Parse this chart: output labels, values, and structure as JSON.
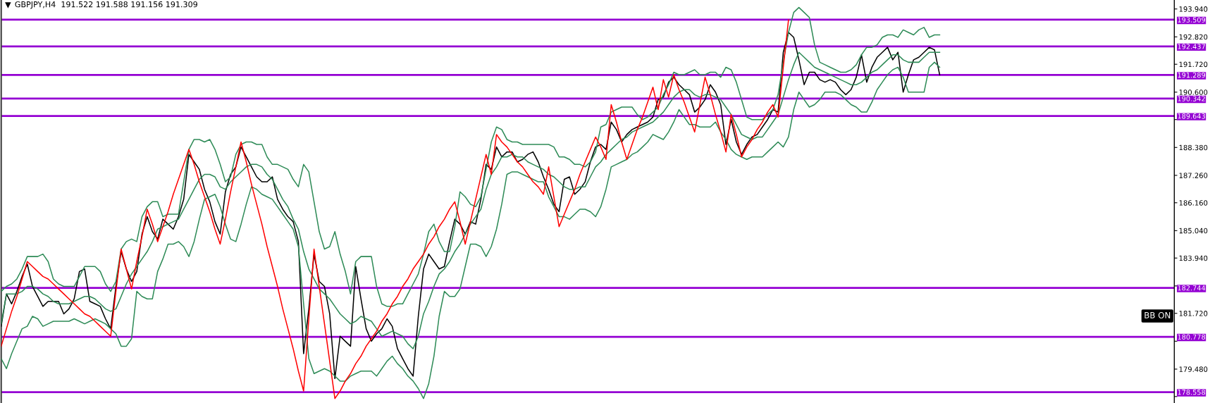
{
  "chart_data": {
    "type": "line",
    "title": "GBPJPY,H4  191.522 191.588 191.156 191.309",
    "annotations": [
      "BB ON"
    ],
    "categories": [
      null,
      null,
      null,
      null,
      null,
      null,
      null,
      null,
      null,
      null,
      null,
      null,
      null,
      null,
      null,
      null,
      null,
      null,
      null,
      null,
      null,
      null,
      null,
      null,
      null,
      null,
      null,
      null,
      null,
      null,
      null,
      null,
      null,
      null,
      null,
      null,
      null,
      null,
      null,
      null,
      null,
      null,
      null,
      null,
      null,
      null,
      null,
      null,
      null,
      null,
      null,
      null,
      null,
      null,
      null,
      null,
      null,
      null,
      null,
      null,
      null,
      null,
      null,
      null,
      null,
      null,
      null,
      null,
      null,
      null,
      null,
      null,
      null,
      null,
      null,
      null,
      null,
      null,
      null,
      null,
      null,
      null,
      null,
      null,
      null,
      null,
      null,
      null,
      null,
      null,
      null,
      null,
      null,
      null,
      null,
      null,
      null,
      null,
      null,
      null,
      null,
      null,
      null,
      null,
      null,
      null,
      null,
      null,
      null,
      null,
      null,
      null,
      null,
      null,
      null,
      null,
      null,
      null,
      null,
      null,
      null,
      null,
      null,
      null,
      null,
      null,
      null,
      null,
      null,
      null,
      null,
      null,
      null,
      null,
      null,
      null,
      null,
      null,
      null,
      null,
      null,
      null,
      null,
      null,
      null,
      null,
      null,
      null,
      null,
      null,
      null,
      null,
      null,
      null,
      null,
      null,
      null,
      null,
      null,
      null,
      null,
      null,
      null,
      null,
      null,
      null,
      null,
      null,
      null,
      null,
      null,
      null,
      null,
      null,
      null,
      null,
      null,
      null,
      null,
      null,
      null,
      null,
      null,
      null,
      null,
      null,
      null,
      null,
      null,
      null,
      null,
      null,
      null,
      null,
      null,
      null,
      null,
      null,
      null,
      null,
      null,
      null,
      null,
      null,
      null,
      null,
      null,
      null,
      null,
      null,
      null,
      null,
      null,
      null,
      null,
      null,
      null,
      null,
      null,
      null,
      null,
      null,
      null,
      null,
      null
    ],
    "ylim": [
      178.12,
      194.3
    ],
    "yticks": [
      {
        "value": 193.94,
        "label": "193.940"
      },
      {
        "value": 192.82,
        "label": "192.820"
      },
      {
        "value": 191.72,
        "label": "191.720"
      },
      {
        "value": 190.6,
        "label": "190.600"
      },
      {
        "value": 189.5,
        "label": null
      },
      {
        "value": 188.38,
        "label": "188.380"
      },
      {
        "value": 187.26,
        "label": "187.260"
      },
      {
        "value": 186.16,
        "label": "186.160"
      },
      {
        "value": 185.04,
        "label": "185.040"
      },
      {
        "value": 183.94,
        "label": "183.940"
      },
      {
        "value": 182.82,
        "label": null
      },
      {
        "value": 181.72,
        "label": "181.720"
      },
      {
        "value": 180.6,
        "label": null
      },
      {
        "value": 179.48,
        "label": "179.480"
      },
      {
        "value": 178.38,
        "label": null
      }
    ],
    "tick_labels": "y",
    "grid": false,
    "marker": "none",
    "series": [
      {
        "color": "#000000",
        "values": [
          181.2,
          182.5,
          182.1,
          182.6,
          183.2,
          183.7,
          182.8,
          182.4,
          182.0,
          182.2,
          182.2,
          182.2,
          181.7,
          181.9,
          182.3,
          183.4,
          183.5,
          182.2,
          182.1,
          182.0,
          181.5,
          181.1,
          182.8,
          184.2,
          183.5,
          183.0,
          183.4,
          184.9,
          185.6,
          185.0,
          184.7,
          185.5,
          185.3,
          185.1,
          185.6,
          186.3,
          188.1,
          187.8,
          187.5,
          186.7,
          186.2,
          185.4,
          184.9,
          186.6,
          187.3,
          187.6,
          188.4,
          188.0,
          187.6,
          187.2,
          187.0,
          187.0,
          187.2,
          186.3,
          185.9,
          185.6,
          185.4,
          184.6,
          180.1,
          181.9,
          184.1,
          183.0,
          182.8,
          181.7,
          179.1,
          180.8,
          180.6,
          180.4,
          183.6,
          182.3,
          181.1,
          180.6,
          180.9,
          181.1,
          181.5,
          181.2,
          180.3,
          179.9,
          179.5,
          179.2,
          181.6,
          183.5,
          184.1,
          183.8,
          183.5,
          183.6,
          184.6,
          185.5,
          185.3,
          184.9,
          185.4,
          185.3,
          186.3,
          187.7,
          187.5,
          188.4,
          188.0,
          188.2,
          188.2,
          187.8,
          187.9,
          188.1,
          188.2,
          187.8,
          187.2,
          186.7,
          186.1,
          185.8,
          187.1,
          187.2,
          186.5,
          186.7,
          187.0,
          187.8,
          188.4,
          188.5,
          188.3,
          189.4,
          189.1,
          188.6,
          188.9,
          189.1,
          189.2,
          189.3,
          189.4,
          189.6,
          190.3,
          190.4,
          191.0,
          191.2,
          190.9,
          190.7,
          190.5,
          189.8,
          190.0,
          190.3,
          190.9,
          190.6,
          190.1,
          188.5,
          189.5,
          188.6,
          188.1,
          188.5,
          188.8,
          188.9,
          189.2,
          189.5,
          189.9,
          189.8,
          192.2,
          193.0,
          192.8,
          191.9,
          190.9,
          191.4,
          191.4,
          191.1,
          191.0,
          191.1,
          191.0,
          190.7,
          190.5,
          190.7,
          191.2,
          192.1,
          191.0,
          191.6,
          192.0,
          192.2,
          192.4,
          191.9,
          192.2,
          190.6,
          191.3,
          191.9,
          192.0,
          192.2,
          192.4,
          192.3,
          191.3,
          null,
          null,
          null,
          null,
          null,
          null,
          null,
          null,
          null,
          null,
          null,
          null,
          null,
          null,
          null,
          null,
          null,
          null,
          null,
          null,
          null,
          null,
          null,
          null,
          null,
          null,
          null,
          null,
          null,
          null,
          null,
          null,
          null,
          null,
          null,
          null,
          null,
          null,
          null,
          null,
          null,
          null,
          null,
          null
        ]
      },
      {
        "color": "#2e8b57",
        "values": [
          182.6,
          182.8,
          182.9,
          183.1,
          183.5,
          184.0,
          184.0,
          184.0,
          184.1,
          183.8,
          183.1,
          182.9,
          182.8,
          182.8,
          182.8,
          183.2,
          183.6,
          183.6,
          183.6,
          183.4,
          182.9,
          182.6,
          183.0,
          184.3,
          184.6,
          184.7,
          184.6,
          185.6,
          186.0,
          186.2,
          186.2,
          185.6,
          185.7,
          185.7,
          185.7,
          187.0,
          188.3,
          188.7,
          188.7,
          188.6,
          188.7,
          188.3,
          187.7,
          187.0,
          187.2,
          188.1,
          188.5,
          188.6,
          188.6,
          188.5,
          188.5,
          188.0,
          187.7,
          187.7,
          187.6,
          187.5,
          187.1,
          186.8,
          187.7,
          187.4,
          186.2,
          185.0,
          184.3,
          184.4,
          185.0,
          184.1,
          183.4,
          182.5,
          183.8,
          184.0,
          184.0,
          184.0,
          182.8,
          182.1,
          182.0,
          182.0,
          182.1,
          182.1,
          182.5,
          182.9,
          183.3,
          184.1,
          185.0,
          185.3,
          184.6,
          184.2,
          184.2,
          185.2,
          186.6,
          186.4,
          186.1,
          186.0,
          186.4,
          187.5,
          188.6,
          189.2,
          189.1,
          188.7,
          188.6,
          188.6,
          188.5,
          188.5,
          188.5,
          188.5,
          188.5,
          188.5,
          188.4,
          188.0,
          188.0,
          187.9,
          187.7,
          187.7,
          187.6,
          187.8,
          188.2,
          189.2,
          189.3,
          189.8,
          189.9,
          190.0,
          190.0,
          190.0,
          189.7,
          189.5,
          189.6,
          189.8,
          190.0,
          190.5,
          190.9,
          191.4,
          191.3,
          191.3,
          191.4,
          191.5,
          191.3,
          191.3,
          191.4,
          191.4,
          191.2,
          191.6,
          191.5,
          191.0,
          190.3,
          189.6,
          189.5,
          189.5,
          189.5,
          189.7,
          189.9,
          190.5,
          191.8,
          193.0,
          193.8,
          194.0,
          193.8,
          193.6,
          192.5,
          191.8,
          191.7,
          191.6,
          191.5,
          191.4,
          191.4,
          191.5,
          191.7,
          192.1,
          192.4,
          192.4,
          192.5,
          192.8,
          192.9,
          192.9,
          192.8,
          193.1,
          193.0,
          192.9,
          193.1,
          193.2,
          192.8,
          192.9,
          192.9,
          null,
          null,
          null,
          null,
          null,
          null,
          null,
          null,
          null,
          null,
          null,
          null,
          null,
          null,
          null,
          null,
          null,
          null,
          null,
          null,
          null,
          null,
          null,
          null,
          null,
          null,
          null,
          null,
          null,
          null,
          null,
          null,
          null,
          null,
          null,
          null,
          null,
          null,
          null,
          null,
          null,
          null,
          null,
          null
        ]
      },
      {
        "color": "#2e8b57",
        "values": [
          181.3,
          182.5,
          182.5,
          182.5,
          182.6,
          182.8,
          182.8,
          182.7,
          182.5,
          182.4,
          182.2,
          182.1,
          182.1,
          182.1,
          182.2,
          182.3,
          182.4,
          182.4,
          182.3,
          182.1,
          181.9,
          181.8,
          181.9,
          182.4,
          182.9,
          183.3,
          183.6,
          183.9,
          184.2,
          184.6,
          185.1,
          185.2,
          185.3,
          185.4,
          185.5,
          185.9,
          186.3,
          186.7,
          187.1,
          187.3,
          187.3,
          187.2,
          186.8,
          186.7,
          187.0,
          187.2,
          187.4,
          187.6,
          187.7,
          187.7,
          187.6,
          187.3,
          187.1,
          186.7,
          186.3,
          186.0,
          185.5,
          185.1,
          184.2,
          183.5,
          183.1,
          182.7,
          182.5,
          182.3,
          182.0,
          181.7,
          181.5,
          181.3,
          181.4,
          181.6,
          181.5,
          181.4,
          181.1,
          180.8,
          180.9,
          181.0,
          180.9,
          180.8,
          180.5,
          180.3,
          180.8,
          181.7,
          182.2,
          182.8,
          183.3,
          183.5,
          183.8,
          184.2,
          184.5,
          184.9,
          185.3,
          185.6,
          185.9,
          186.7,
          187.3,
          187.6,
          188.0,
          188.0,
          188.1,
          188.0,
          188.0,
          187.8,
          187.7,
          187.6,
          187.5,
          187.3,
          187.2,
          187.0,
          186.8,
          186.7,
          186.7,
          186.8,
          186.8,
          187.2,
          187.6,
          187.8,
          188.1,
          188.3,
          188.5,
          188.7,
          188.8,
          189.0,
          189.1,
          189.2,
          189.3,
          189.4,
          189.6,
          189.8,
          190.1,
          190.4,
          190.6,
          190.7,
          190.7,
          190.5,
          190.4,
          190.5,
          190.5,
          190.4,
          190.3,
          190.0,
          189.7,
          189.3,
          188.9,
          188.8,
          188.7,
          188.8,
          188.8,
          189.1,
          189.4,
          189.7,
          190.4,
          191.1,
          191.7,
          192.2,
          192.0,
          191.8,
          191.6,
          191.5,
          191.4,
          191.3,
          191.2,
          191.1,
          191.0,
          190.9,
          190.9,
          191.0,
          191.2,
          191.4,
          191.5,
          191.7,
          191.9,
          192.1,
          192.1,
          191.9,
          191.8,
          191.8,
          191.8,
          192.0,
          192.2,
          192.2,
          192.2,
          null,
          null,
          null,
          null,
          null,
          null,
          null,
          null,
          null,
          null,
          null,
          null,
          null,
          null,
          null,
          null,
          null,
          null,
          null,
          null,
          null,
          null,
          null,
          null,
          null,
          null,
          null,
          null,
          null,
          null,
          null,
          null,
          null,
          null,
          null,
          null,
          null,
          null,
          null,
          null,
          null,
          null,
          null,
          null
        ]
      },
      {
        "color": "#2e8b57",
        "values": [
          179.9,
          179.5,
          180.1,
          180.6,
          181.1,
          181.2,
          181.6,
          181.5,
          181.2,
          181.3,
          181.4,
          181.4,
          181.4,
          181.4,
          181.5,
          181.4,
          181.3,
          181.4,
          181.5,
          181.4,
          181.3,
          181.1,
          180.9,
          180.4,
          180.4,
          180.7,
          182.6,
          182.4,
          182.3,
          182.3,
          183.4,
          183.9,
          184.5,
          184.5,
          184.6,
          184.4,
          184.0,
          184.6,
          185.5,
          186.3,
          186.4,
          186.5,
          186.0,
          185.3,
          184.7,
          184.6,
          185.3,
          186.1,
          186.8,
          186.7,
          186.5,
          186.4,
          186.3,
          186.0,
          185.7,
          185.4,
          185.1,
          184.4,
          182.1,
          179.9,
          179.3,
          179.4,
          179.5,
          179.4,
          179.2,
          179.0,
          179.0,
          179.2,
          179.3,
          179.4,
          179.4,
          179.4,
          179.2,
          179.5,
          179.8,
          180.0,
          179.7,
          179.5,
          179.2,
          179.0,
          178.7,
          178.3,
          178.9,
          180.0,
          181.6,
          182.6,
          182.4,
          182.4,
          182.7,
          183.6,
          184.5,
          184.5,
          184.4,
          184.0,
          184.4,
          185.1,
          186.1,
          187.3,
          187.4,
          187.4,
          187.3,
          187.2,
          187.1,
          187.0,
          187.0,
          186.4,
          186.0,
          185.6,
          185.6,
          185.5,
          185.7,
          185.9,
          185.9,
          185.8,
          185.6,
          186.0,
          186.7,
          187.6,
          187.7,
          187.8,
          187.9,
          188.1,
          188.2,
          188.4,
          188.6,
          188.9,
          188.8,
          188.7,
          189.0,
          189.4,
          189.9,
          189.6,
          189.3,
          189.3,
          189.2,
          189.2,
          189.2,
          189.4,
          189.0,
          188.7,
          188.3,
          188.1,
          188.0,
          187.9,
          188.0,
          188.0,
          188.0,
          188.2,
          188.4,
          188.6,
          188.4,
          188.8,
          189.9,
          190.6,
          190.3,
          190.0,
          190.1,
          190.3,
          190.6,
          190.6,
          190.6,
          190.5,
          190.3,
          190.1,
          190.0,
          189.8,
          189.8,
          190.2,
          190.7,
          191.0,
          191.3,
          191.5,
          191.6,
          191.2,
          190.6,
          190.6,
          190.6,
          190.6,
          191.6,
          191.8,
          191.6,
          null,
          null,
          null,
          null,
          null,
          null,
          null,
          null,
          null,
          null,
          null,
          null,
          null,
          null,
          null,
          null,
          null,
          null,
          null,
          null,
          null,
          null,
          null,
          null,
          null,
          null,
          null,
          null,
          null,
          null,
          null,
          null,
          null,
          null,
          null,
          null,
          null,
          null,
          null,
          null,
          null,
          null,
          null,
          null
        ]
      },
      {
        "color": "#ff0000",
        "values": [
          180.4,
          181.1,
          181.8,
          182.4,
          183.1,
          183.8,
          183.6,
          183.4,
          183.2,
          183.1,
          182.9,
          182.7,
          182.5,
          182.3,
          182.1,
          181.9,
          181.7,
          181.6,
          181.4,
          181.2,
          181.0,
          180.8,
          182.6,
          184.3,
          183.5,
          182.7,
          183.8,
          184.8,
          185.9,
          185.3,
          184.6,
          185.2,
          185.8,
          186.5,
          187.1,
          187.7,
          188.3,
          187.7,
          187.0,
          186.4,
          185.8,
          185.1,
          184.5,
          185.5,
          186.6,
          187.6,
          188.6,
          187.8,
          186.9,
          186.1,
          185.3,
          184.4,
          183.6,
          182.8,
          181.9,
          181.1,
          180.3,
          179.4,
          178.6,
          181.5,
          184.3,
          182.8,
          181.3,
          179.8,
          178.3,
          178.6,
          179.0,
          179.3,
          179.7,
          180.0,
          180.4,
          180.7,
          181.0,
          181.4,
          181.7,
          182.1,
          182.4,
          182.8,
          183.1,
          183.5,
          183.8,
          184.1,
          184.5,
          184.8,
          185.2,
          185.5,
          185.9,
          186.2,
          185.4,
          184.5,
          185.4,
          186.3,
          187.2,
          188.1,
          187.3,
          188.9,
          188.6,
          188.4,
          188.1,
          187.8,
          187.6,
          187.3,
          187.0,
          186.8,
          186.5,
          187.6,
          186.4,
          185.2,
          185.7,
          186.2,
          186.7,
          187.3,
          187.8,
          188.3,
          188.8,
          188.4,
          187.9,
          190.1,
          189.4,
          188.6,
          187.9,
          188.5,
          189.1,
          189.6,
          190.2,
          190.8,
          189.9,
          191.1,
          190.4,
          191.3,
          190.7,
          190.2,
          189.6,
          189.0,
          190.1,
          191.2,
          190.5,
          189.7,
          189.0,
          188.2,
          189.7,
          188.9,
          188.0,
          188.4,
          188.7,
          189.1,
          189.4,
          189.8,
          190.1,
          189.6,
          191.6,
          193.5,
          null,
          null,
          null,
          null,
          null,
          null,
          null,
          null,
          null,
          null,
          null,
          null,
          null,
          null,
          null,
          null,
          null,
          null,
          null,
          null,
          null,
          null,
          null,
          null,
          null,
          null,
          null,
          null,
          null,
          null,
          null,
          null,
          null,
          null,
          null,
          null,
          null,
          null,
          null,
          null,
          null,
          null,
          null,
          null,
          null,
          null,
          null,
          null,
          null,
          null,
          null,
          null,
          null,
          null,
          null,
          null,
          null,
          null,
          null,
          null,
          null,
          null,
          null,
          null,
          null,
          null,
          null,
          null,
          null,
          null,
          null,
          null,
          null
        ]
      }
    ],
    "ref_lines": [
      {
        "axis": "y",
        "value": 193.509,
        "label": "193.509",
        "color": "#9400d3"
      },
      {
        "axis": "y",
        "value": 192.437,
        "label": "192.437",
        "color": "#9400d3"
      },
      {
        "axis": "y",
        "value": 191.289,
        "label": "191.289",
        "color": "#9400d3"
      },
      {
        "axis": "y",
        "value": 190.342,
        "label": "190.342",
        "color": "#9400d3"
      },
      {
        "axis": "y",
        "value": 189.643,
        "label": "189.643",
        "color": "#9400d3"
      },
      {
        "axis": "y",
        "value": 182.744,
        "label": "182.744",
        "color": "#9400d3"
      },
      {
        "axis": "y",
        "value": 180.778,
        "label": "180.778",
        "color": "#9400d3"
      },
      {
        "axis": "y",
        "value": 178.558,
        "label": "178.558",
        "color": "#9400d3"
      }
    ]
  }
}
